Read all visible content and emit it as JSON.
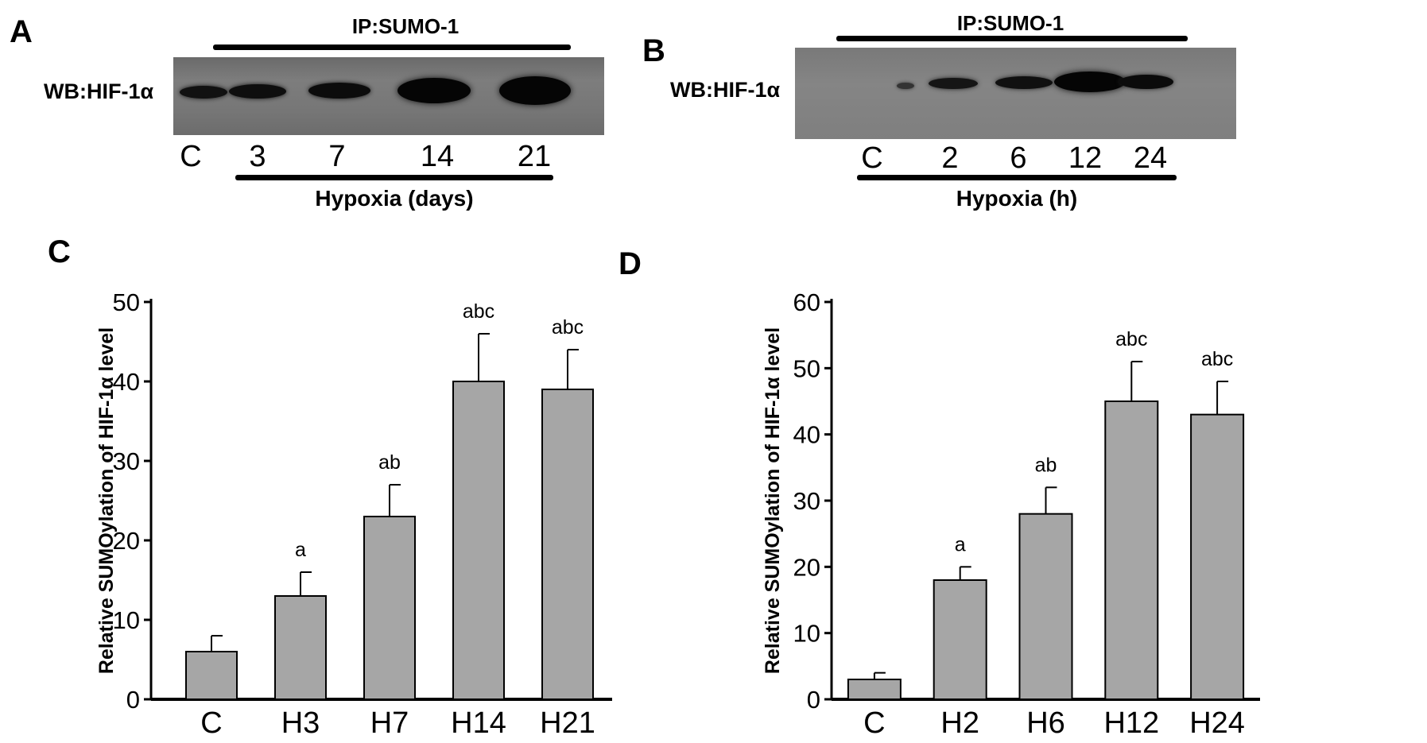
{
  "panels": {
    "A": {
      "letter": "A",
      "ip_label": "IP:SUMO-1",
      "wb_label": "WB:HIF-1α",
      "lanes": [
        "C",
        "3",
        "7",
        "14",
        "21"
      ],
      "axis_label": "Hypoxia (days)"
    },
    "B": {
      "letter": "B",
      "ip_label": "IP:SUMO-1",
      "wb_label": "WB:HIF-1α",
      "lanes": [
        "C",
        "2",
        "6",
        "12",
        "24"
      ],
      "axis_label": "Hypoxia (h)"
    },
    "C": {
      "letter": "C"
    },
    "D": {
      "letter": "D"
    }
  },
  "chart_data": [
    {
      "type": "bar",
      "panel": "C",
      "categories": [
        "C",
        "H3",
        "H7",
        "H14",
        "H21"
      ],
      "values": [
        6,
        13,
        23,
        40,
        39
      ],
      "errors": [
        2,
        3,
        4,
        6,
        5
      ],
      "annotations": [
        "",
        "a",
        "ab",
        "abc",
        "abc"
      ],
      "ylabel": "Relative SUMOylation of HIF-1α level",
      "xlabel": "",
      "ylim": [
        0,
        50
      ],
      "yticks": [
        0,
        10,
        20,
        30,
        40,
        50
      ],
      "bar_color": "#a6a6a6"
    },
    {
      "type": "bar",
      "panel": "D",
      "categories": [
        "C",
        "H2",
        "H6",
        "H12",
        "H24"
      ],
      "values": [
        3,
        18,
        28,
        45,
        43
      ],
      "errors": [
        1,
        2,
        4,
        6,
        5
      ],
      "annotations": [
        "",
        "a",
        "ab",
        "abc",
        "abc"
      ],
      "ylabel": "Relative SUMOylation of HIF-1α level",
      "xlabel": "",
      "ylim": [
        0,
        60
      ],
      "yticks": [
        0,
        10,
        20,
        30,
        40,
        50,
        60
      ],
      "bar_color": "#a6a6a6"
    }
  ]
}
